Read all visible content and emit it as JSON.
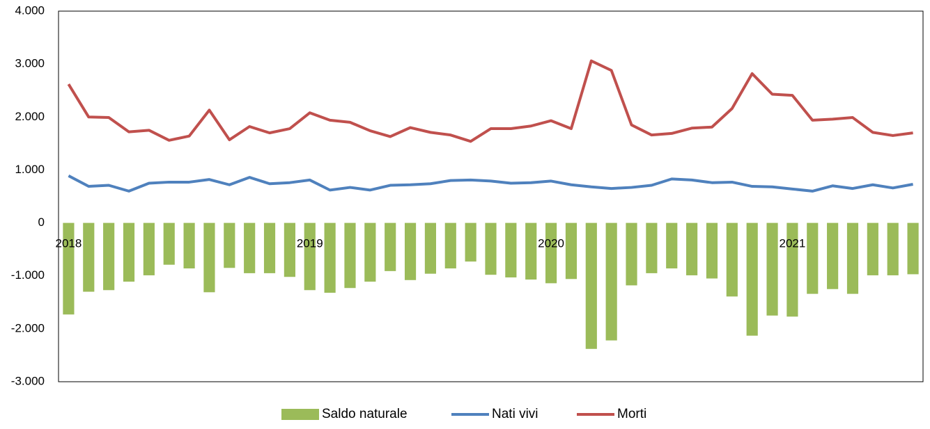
{
  "chart_data": {
    "type": "bar_line",
    "categories": [
      "2018",
      null,
      null,
      null,
      null,
      null,
      null,
      null,
      null,
      null,
      null,
      null,
      "2019",
      null,
      null,
      null,
      null,
      null,
      null,
      null,
      null,
      null,
      null,
      null,
      "2020",
      null,
      null,
      null,
      null,
      null,
      null,
      null,
      null,
      null,
      null,
      null,
      "2021",
      null,
      null,
      null,
      null,
      null,
      null
    ],
    "series": [
      {
        "name": "Saldo naturale",
        "type": "bar",
        "color": "#9bbb59",
        "values": [
          -1730,
          -1300,
          -1270,
          -1110,
          -990,
          -790,
          -860,
          -1310,
          -850,
          -950,
          -950,
          -1020,
          -1270,
          -1320,
          -1230,
          -1110,
          -910,
          -1080,
          -960,
          -860,
          -730,
          -980,
          -1030,
          -1070,
          -1140,
          -1060,
          -2380,
          -2220,
          -1180,
          -950,
          -860,
          -990,
          -1050,
          -1390,
          -2130,
          -1750,
          -1770,
          -1340,
          -1250,
          -1340,
          -990,
          -990,
          -970
        ]
      },
      {
        "name": "Nati vivi",
        "type": "line",
        "color": "#4f81bd",
        "values": [
          890,
          690,
          710,
          600,
          750,
          770,
          770,
          820,
          720,
          860,
          740,
          760,
          810,
          620,
          670,
          620,
          710,
          720,
          740,
          800,
          810,
          790,
          750,
          760,
          790,
          720,
          680,
          650,
          670,
          710,
          830,
          810,
          760,
          770,
          690,
          680,
          640,
          600,
          700,
          650,
          720,
          660,
          730
        ]
      },
      {
        "name": "Morti",
        "type": "line",
        "color": "#c0504d",
        "values": [
          2620,
          2000,
          1990,
          1720,
          1750,
          1560,
          1640,
          2130,
          1570,
          1820,
          1700,
          1780,
          2080,
          1940,
          1900,
          1740,
          1630,
          1800,
          1710,
          1660,
          1540,
          1780,
          1780,
          1830,
          1930,
          1780,
          3060,
          2880,
          1850,
          1660,
          1690,
          1790,
          1810,
          2160,
          2820,
          2430,
          2410,
          1940,
          1960,
          1990,
          1710,
          1650,
          1700
        ]
      }
    ],
    "ylim": [
      -3000,
      4000
    ],
    "yticks": [
      {
        "value": -3000,
        "label": "-3.000"
      },
      {
        "value": -2000,
        "label": "-2.000"
      },
      {
        "value": -1000,
        "label": "-1.000"
      },
      0,
      {
        "value": 1000,
        "label": "1.000"
      },
      {
        "value": 2000,
        "label": "2.000"
      },
      {
        "value": 3000,
        "label": "3.000"
      },
      {
        "value": 4000,
        "label": "4.000"
      }
    ],
    "grid": false,
    "legend": "bottom"
  }
}
